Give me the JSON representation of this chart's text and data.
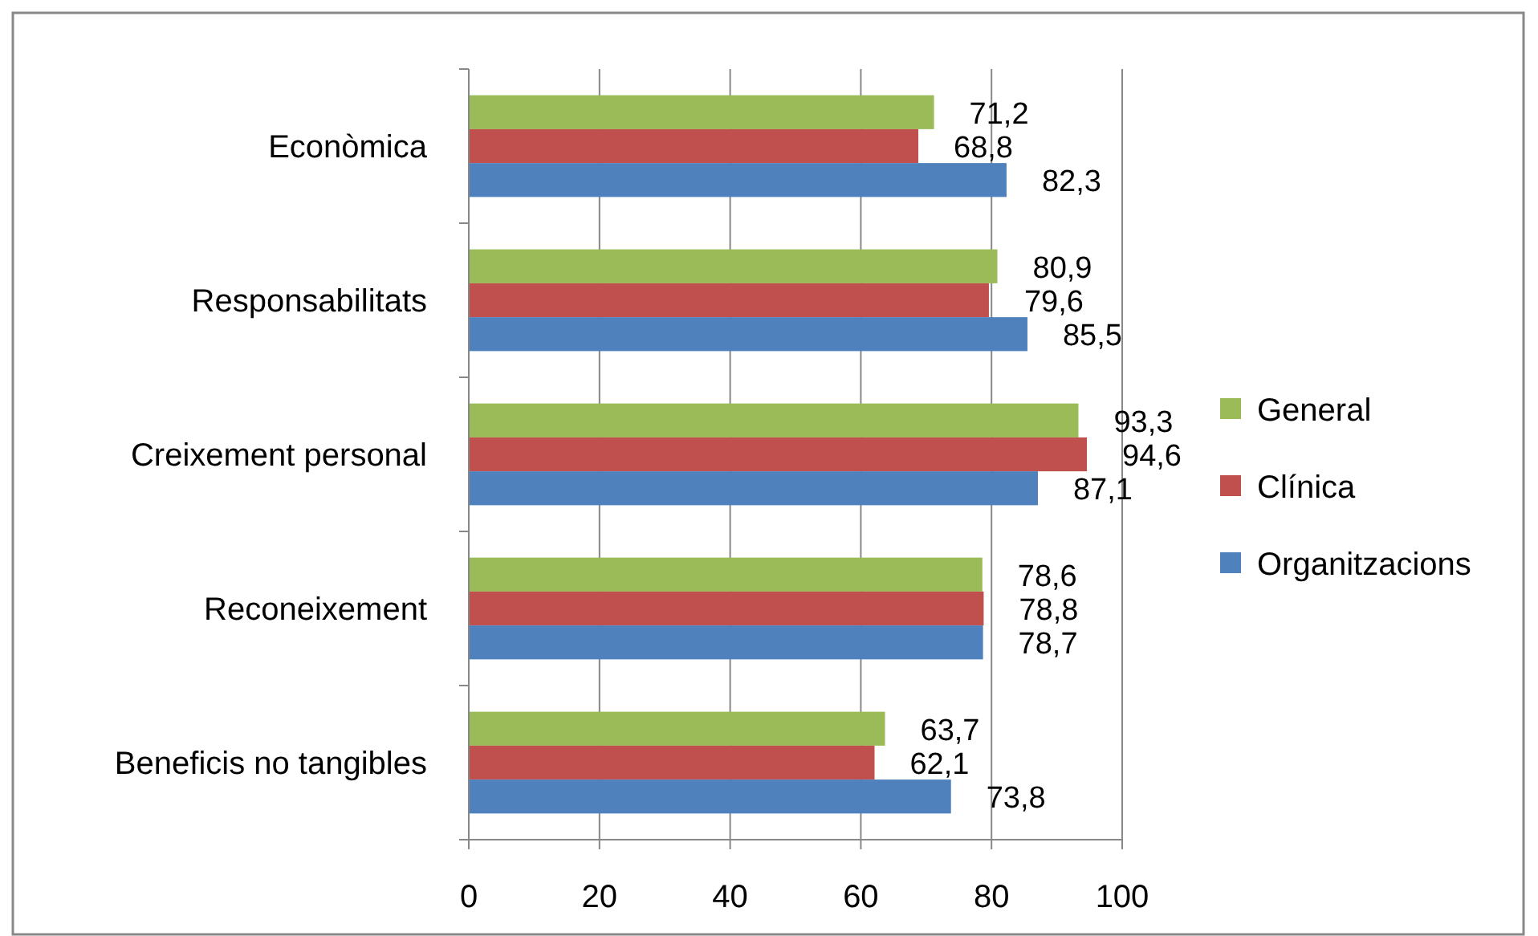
{
  "chart_data": {
    "type": "bar",
    "orientation": "horizontal",
    "categories": [
      "Econòmica",
      "Responsabilitats",
      "Creixement personal",
      "Reconeixement",
      "Beneficis no tangibles"
    ],
    "series": [
      {
        "name": "General",
        "color": "#9bbb59",
        "values": [
          71.2,
          80.9,
          93.3,
          78.6,
          63.7
        ],
        "value_labels": [
          "71,2",
          "80,9",
          "93,3",
          "78,6",
          "63,7"
        ]
      },
      {
        "name": "Clínica",
        "color": "#c0504d",
        "values": [
          68.8,
          79.6,
          94.6,
          78.8,
          62.1
        ],
        "value_labels": [
          "68,8",
          "79,6",
          "94,6",
          "78,8",
          "62,1"
        ]
      },
      {
        "name": "Organitzacions",
        "color": "#4f81bd",
        "values": [
          82.3,
          85.5,
          87.1,
          78.7,
          73.8
        ],
        "value_labels": [
          "82,3",
          "85,5",
          "87,1",
          "78,7",
          "73,8"
        ]
      }
    ],
    "xlim": [
      0,
      100
    ],
    "xticks": [
      0,
      20,
      40,
      60,
      80,
      100
    ],
    "grid": "x",
    "legend": "right"
  }
}
